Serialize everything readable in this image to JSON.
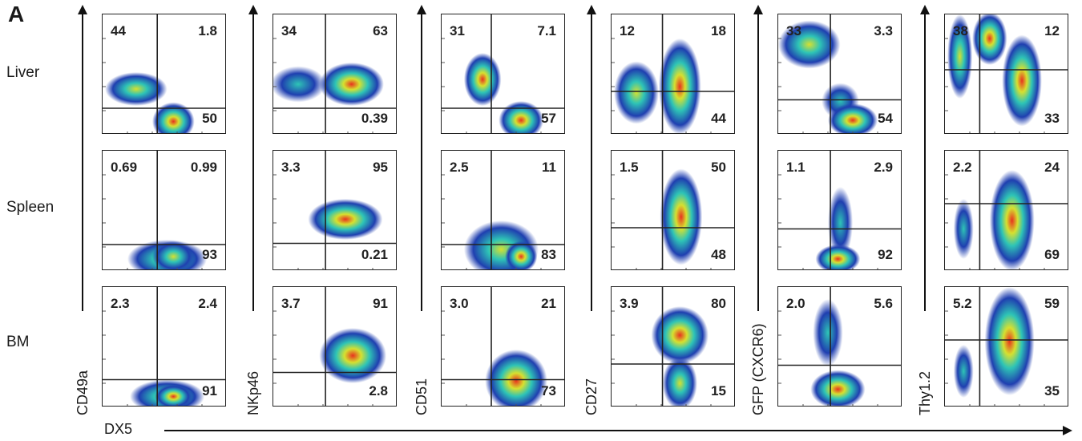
{
  "panel_label": "A",
  "rows": [
    "Liver",
    "Spleen",
    "BM"
  ],
  "x_axis_label": "DX5",
  "columns": [
    {
      "y_marker": "CD49a",
      "cells": [
        {
          "tl": "44",
          "tr": "1.8",
          "br": "50"
        },
        {
          "tl": "0.69",
          "tr": "0.99",
          "br": "93"
        },
        {
          "tl": "2.3",
          "tr": "2.4",
          "br": "91"
        }
      ]
    },
    {
      "y_marker": "NKp46",
      "cells": [
        {
          "tl": "34",
          "tr": "63",
          "br": "0.39"
        },
        {
          "tl": "3.3",
          "tr": "95",
          "br": "0.21"
        },
        {
          "tl": "3.7",
          "tr": "91",
          "br": "2.8"
        }
      ]
    },
    {
      "y_marker": "CD51",
      "cells": [
        {
          "tl": "31",
          "tr": "7.1",
          "br": "57"
        },
        {
          "tl": "2.5",
          "tr": "11",
          "br": "83"
        },
        {
          "tl": "3.0",
          "tr": "21",
          "br": "73"
        }
      ]
    },
    {
      "y_marker": "CD27",
      "cells": [
        {
          "tl": "12",
          "tr": "18",
          "br": "44"
        },
        {
          "tl": "1.5",
          "tr": "50",
          "br": "48"
        },
        {
          "tl": "3.9",
          "tr": "80",
          "br": "15"
        }
      ]
    },
    {
      "y_marker": "GFP (CXCR6)",
      "cells": [
        {
          "tl": "33",
          "tr": "3.3",
          "br": "54"
        },
        {
          "tl": "1.1",
          "tr": "2.9",
          "br": "92"
        },
        {
          "tl": "2.0",
          "tr": "5.6",
          "br": ""
        }
      ]
    },
    {
      "y_marker": "Thy1.2",
      "cells": [
        {
          "tl": "38",
          "tr": "12",
          "br": "33"
        },
        {
          "tl": "2.2",
          "tr": "24",
          "br": "69"
        },
        {
          "tl": "5.2",
          "tr": "59",
          "br": "35"
        }
      ]
    }
  ],
  "colors": {
    "density_low": "#1f3fb0",
    "density_mid": "#2ec4b6",
    "density_high_mid": "#d6e030",
    "density_high": "#e8321e"
  }
}
